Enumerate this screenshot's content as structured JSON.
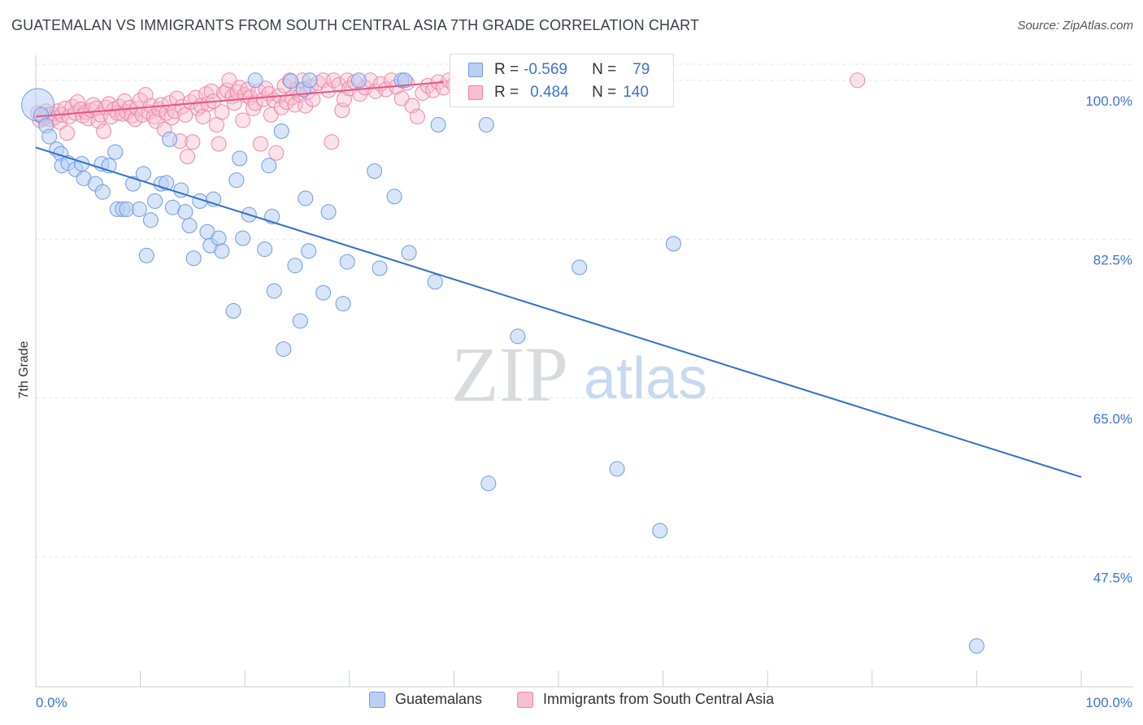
{
  "title": "GUATEMALAN VS IMMIGRANTS FROM SOUTH CENTRAL ASIA 7TH GRADE CORRELATION CHART",
  "source": "Source: ZipAtlas.com",
  "watermark": {
    "zip": "ZIP",
    "atlas": "atlas"
  },
  "legend": {
    "r_label": "R =",
    "n_label": "N =",
    "rows": [
      {
        "r": "-0.569",
        "n": "79"
      },
      {
        "r": "0.484",
        "n": "140"
      }
    ]
  },
  "bottom_legend": [
    "Guatemalans",
    "Immigrants from South Central Asia"
  ],
  "colors": {
    "blue_fill": "#b8d0f4",
    "blue_stroke": "#6f9ae0",
    "blue_line": "#2f6fd0",
    "pink_fill": "#f7bfd0",
    "pink_stroke": "#ee86a7",
    "pink_line": "#e8557f",
    "tick_blue": "#3b73d1",
    "grid": "#e4e6ea"
  },
  "chart_data": {
    "type": "scatter",
    "title": "GUATEMALAN VS IMMIGRANTS FROM SOUTH CENTRAL ASIA 7TH GRADE CORRELATION CHART",
    "xlabel": "",
    "ylabel": "7th Grade",
    "xlim": [
      0,
      100
    ],
    "ylim": [
      33.2,
      102.4
    ],
    "x_tick_labels": [
      "0.0%",
      "100.0%"
    ],
    "y_ticks": [
      47.5,
      65.0,
      82.5,
      100.0
    ],
    "y_tick_labels": [
      "47.5%",
      "65.0%",
      "82.5%",
      "100.0%"
    ],
    "grid": "horizontal dashed",
    "legend_position": "top-center",
    "series": [
      {
        "name": "Guatemalans",
        "r": -0.569,
        "n": 79,
        "trend": {
          "x": [
            0,
            100
          ],
          "y": [
            92.6,
            56.3
          ]
        },
        "points": [
          [
            0.2,
            97.3
          ],
          [
            0.5,
            96.2
          ],
          [
            1.0,
            95.0
          ],
          [
            1.3,
            93.8
          ],
          [
            2.0,
            92.4
          ],
          [
            2.4,
            91.9
          ],
          [
            2.5,
            90.6
          ],
          [
            3.1,
            90.9
          ],
          [
            3.8,
            90.2
          ],
          [
            4.4,
            90.8
          ],
          [
            4.6,
            89.2
          ],
          [
            5.7,
            88.6
          ],
          [
            6.3,
            90.8
          ],
          [
            6.4,
            87.7
          ],
          [
            7.0,
            90.6
          ],
          [
            7.6,
            92.1
          ],
          [
            7.8,
            85.8
          ],
          [
            8.3,
            85.8
          ],
          [
            8.7,
            85.8
          ],
          [
            9.3,
            88.6
          ],
          [
            9.9,
            85.8
          ],
          [
            10.3,
            89.7
          ],
          [
            10.6,
            80.7
          ],
          [
            11.0,
            84.6
          ],
          [
            11.4,
            86.7
          ],
          [
            12.0,
            88.6
          ],
          [
            12.5,
            88.7
          ],
          [
            12.8,
            93.5
          ],
          [
            13.1,
            86.0
          ],
          [
            13.9,
            87.9
          ],
          [
            14.3,
            85.5
          ],
          [
            14.7,
            84.0
          ],
          [
            15.1,
            80.4
          ],
          [
            15.7,
            86.7
          ],
          [
            16.4,
            83.3
          ],
          [
            16.7,
            81.8
          ],
          [
            17.0,
            86.9
          ],
          [
            17.5,
            82.6
          ],
          [
            17.8,
            81.2
          ],
          [
            18.9,
            74.6
          ],
          [
            19.2,
            89.0
          ],
          [
            19.5,
            91.4
          ],
          [
            19.8,
            82.6
          ],
          [
            20.4,
            85.2
          ],
          [
            21.0,
            100.0
          ],
          [
            21.9,
            81.4
          ],
          [
            22.3,
            90.6
          ],
          [
            22.6,
            85.0
          ],
          [
            22.8,
            76.8
          ],
          [
            23.5,
            94.4
          ],
          [
            23.7,
            70.4
          ],
          [
            24.4,
            99.9
          ],
          [
            24.8,
            79.6
          ],
          [
            25.3,
            73.5
          ],
          [
            25.6,
            99.0
          ],
          [
            25.8,
            87.0
          ],
          [
            26.2,
            100.0
          ],
          [
            26.1,
            81.2
          ],
          [
            27.5,
            76.6
          ],
          [
            28.0,
            85.5
          ],
          [
            29.4,
            75.4
          ],
          [
            29.8,
            80.0
          ],
          [
            30.9,
            100.0
          ],
          [
            32.9,
            79.3
          ],
          [
            32.4,
            90.0
          ],
          [
            34.3,
            87.2
          ],
          [
            35.0,
            100.0
          ],
          [
            35.3,
            100.0
          ],
          [
            35.7,
            81.0
          ],
          [
            38.2,
            77.8
          ],
          [
            38.5,
            95.1
          ],
          [
            43.1,
            95.1
          ],
          [
            43.3,
            55.6
          ],
          [
            46.1,
            71.8
          ],
          [
            52.0,
            79.4
          ],
          [
            55.6,
            57.2
          ],
          [
            59.7,
            50.4
          ],
          [
            61.0,
            82.0
          ],
          [
            90.0,
            37.7
          ]
        ]
      },
      {
        "name": "Immigrants from South Central Asia",
        "r": 0.484,
        "n": 140,
        "trend": {
          "x": [
            0,
            39
          ],
          "y": [
            96.0,
            99.8
          ]
        },
        "points": [
          [
            0.2,
            96.4
          ],
          [
            0.4,
            95.6
          ],
          [
            0.6,
            96.0
          ],
          [
            0.8,
            95.8
          ],
          [
            1.0,
            96.6
          ],
          [
            1.2,
            96.2
          ],
          [
            1.4,
            95.7
          ],
          [
            1.6,
            96.3
          ],
          [
            1.8,
            95.9
          ],
          [
            2.1,
            96.6
          ],
          [
            2.3,
            95.4
          ],
          [
            2.5,
            96.2
          ],
          [
            2.8,
            96.9
          ],
          [
            3.0,
            94.2
          ],
          [
            3.2,
            96.0
          ],
          [
            3.5,
            97.1
          ],
          [
            3.8,
            96.4
          ],
          [
            4.0,
            97.6
          ],
          [
            4.3,
            96.8
          ],
          [
            4.5,
            96.1
          ],
          [
            4.8,
            96.5
          ],
          [
            5.0,
            95.8
          ],
          [
            5.3,
            96.7
          ],
          [
            5.5,
            97.3
          ],
          [
            5.8,
            96.9
          ],
          [
            6.0,
            95.5
          ],
          [
            6.2,
            96.2
          ],
          [
            6.5,
            94.4
          ],
          [
            6.7,
            97.0
          ],
          [
            7.0,
            97.4
          ],
          [
            7.2,
            96.0
          ],
          [
            7.5,
            96.8
          ],
          [
            7.8,
            96.4
          ],
          [
            8.0,
            97.1
          ],
          [
            8.3,
            96.3
          ],
          [
            8.5,
            97.7
          ],
          [
            8.7,
            96.5
          ],
          [
            9.0,
            97.0
          ],
          [
            9.2,
            96.1
          ],
          [
            9.5,
            95.7
          ],
          [
            9.7,
            96.9
          ],
          [
            10.0,
            97.8
          ],
          [
            10.2,
            96.2
          ],
          [
            10.5,
            98.4
          ],
          [
            10.8,
            96.5
          ],
          [
            11.0,
            97.2
          ],
          [
            11.3,
            96.0
          ],
          [
            11.5,
            95.5
          ],
          [
            11.8,
            96.8
          ],
          [
            12.0,
            97.3
          ],
          [
            12.3,
            94.6
          ],
          [
            12.5,
            96.4
          ],
          [
            12.8,
            97.5
          ],
          [
            13.0,
            95.9
          ],
          [
            13.3,
            96.6
          ],
          [
            13.5,
            98.0
          ],
          [
            13.8,
            93.3
          ],
          [
            14.0,
            97.1
          ],
          [
            14.3,
            96.2
          ],
          [
            14.5,
            91.6
          ],
          [
            14.8,
            97.6
          ],
          [
            15.0,
            93.2
          ],
          [
            15.3,
            98.1
          ],
          [
            15.5,
            96.9
          ],
          [
            15.8,
            97.2
          ],
          [
            16.0,
            96.0
          ],
          [
            16.3,
            98.5
          ],
          [
            16.5,
            97.4
          ],
          [
            16.8,
            98.8
          ],
          [
            17.0,
            97.7
          ],
          [
            17.3,
            95.1
          ],
          [
            17.5,
            93.0
          ],
          [
            17.8,
            96.5
          ],
          [
            18.0,
            98.6
          ],
          [
            18.3,
            98.9
          ],
          [
            18.5,
            100.0
          ],
          [
            18.8,
            98.2
          ],
          [
            19.0,
            97.5
          ],
          [
            19.3,
            98.7
          ],
          [
            19.5,
            99.2
          ],
          [
            19.8,
            95.6
          ],
          [
            20.0,
            98.4
          ],
          [
            20.3,
            99.0
          ],
          [
            20.5,
            98.1
          ],
          [
            20.8,
            96.9
          ],
          [
            21.0,
            97.5
          ],
          [
            21.3,
            98.8
          ],
          [
            21.5,
            93.0
          ],
          [
            21.8,
            97.9
          ],
          [
            22.0,
            99.1
          ],
          [
            22.3,
            98.5
          ],
          [
            22.5,
            96.2
          ],
          [
            22.8,
            97.8
          ],
          [
            23.0,
            92.0
          ],
          [
            23.3,
            98.3
          ],
          [
            23.5,
            97.0
          ],
          [
            23.8,
            99.4
          ],
          [
            24.0,
            97.6
          ],
          [
            24.3,
            100.0
          ],
          [
            24.5,
            98.1
          ],
          [
            24.8,
            97.3
          ],
          [
            25.0,
            99.0
          ],
          [
            25.3,
            98.4
          ],
          [
            25.5,
            100.0
          ],
          [
            25.8,
            97.2
          ],
          [
            26.0,
            98.7
          ],
          [
            26.3,
            99.3
          ],
          [
            26.5,
            97.9
          ],
          [
            27.0,
            99.7
          ],
          [
            27.5,
            100.0
          ],
          [
            28.0,
            98.9
          ],
          [
            28.3,
            93.2
          ],
          [
            28.5,
            100.0
          ],
          [
            29.0,
            99.5
          ],
          [
            29.3,
            96.7
          ],
          [
            29.5,
            97.9
          ],
          [
            29.8,
            100.0
          ],
          [
            30.0,
            99.1
          ],
          [
            30.5,
            99.8
          ],
          [
            31.0,
            98.5
          ],
          [
            31.5,
            99.2
          ],
          [
            32.0,
            100.0
          ],
          [
            32.5,
            98.8
          ],
          [
            33.0,
            99.6
          ],
          [
            33.5,
            99.0
          ],
          [
            34.0,
            100.0
          ],
          [
            34.5,
            99.3
          ],
          [
            35.0,
            98.0
          ],
          [
            35.5,
            99.7
          ],
          [
            36.0,
            97.2
          ],
          [
            36.5,
            96.0
          ],
          [
            37.0,
            98.6
          ],
          [
            37.5,
            99.4
          ],
          [
            38.0,
            98.9
          ],
          [
            38.5,
            99.8
          ],
          [
            39.0,
            99.2
          ],
          [
            39.5,
            100.0
          ],
          [
            40.0,
            99.5
          ],
          [
            41.0,
            99.0
          ],
          [
            78.6,
            100.0
          ]
        ]
      }
    ]
  }
}
